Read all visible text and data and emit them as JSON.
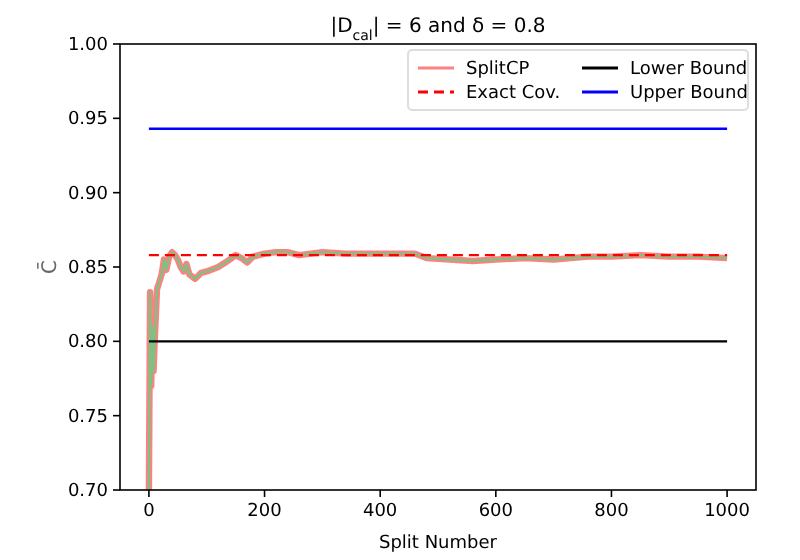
{
  "chart_data": {
    "type": "line",
    "title": "|D$_{cal}$| = 6 and δ = 0.8",
    "xlabel": "Split Number",
    "ylabel": "C̄",
    "xlim": [
      -50,
      1050
    ],
    "ylim": [
      0.7,
      1.0
    ],
    "xticks": [
      0,
      200,
      400,
      600,
      800,
      1000
    ],
    "yticks": [
      {
        "value": 0.7,
        "label": "0.70"
      },
      {
        "value": 0.75,
        "label": "0.75"
      },
      {
        "value": 0.8,
        "label": "0.80"
      },
      {
        "value": 0.85,
        "label": "0.85"
      },
      {
        "value": 0.9,
        "label": "0.90"
      },
      {
        "value": 0.95,
        "label": "0.95"
      },
      {
        "value": 1.0,
        "label": "1.00"
      }
    ],
    "grid": false,
    "legend": "top right",
    "line_style": "solid",
    "series": [
      {
        "name": "SplitCP",
        "color": "#ff8080",
        "x": [
          0,
          2,
          4,
          6,
          8,
          10,
          14,
          18,
          22,
          26,
          30,
          35,
          40,
          45,
          50,
          55,
          60,
          65,
          70,
          80,
          90,
          100,
          120,
          140,
          150,
          160,
          170,
          180,
          200,
          220,
          240,
          260,
          300,
          340,
          400,
          460,
          480,
          520,
          560,
          600,
          650,
          700,
          760,
          800,
          850,
          900,
          950,
          1000
        ],
        "values": [
          0.7,
          0.833,
          0.77,
          0.81,
          0.78,
          0.8,
          0.835,
          0.84,
          0.845,
          0.855,
          0.848,
          0.857,
          0.86,
          0.858,
          0.855,
          0.85,
          0.847,
          0.852,
          0.845,
          0.842,
          0.846,
          0.847,
          0.85,
          0.855,
          0.858,
          0.856,
          0.853,
          0.857,
          0.859,
          0.86,
          0.86,
          0.858,
          0.86,
          0.859,
          0.859,
          0.859,
          0.856,
          0.855,
          0.854,
          0.855,
          0.856,
          0.855,
          0.857,
          0.857,
          0.858,
          0.857,
          0.857,
          0.856
        ]
      },
      {
        "color": "#80c080",
        "x": [
          0,
          2,
          4,
          6,
          8,
          10,
          14,
          18,
          22,
          26,
          30,
          35,
          40,
          45,
          50,
          55,
          60,
          65,
          70,
          80,
          90,
          100,
          120,
          140,
          150,
          160,
          170,
          180,
          200,
          220,
          240,
          260,
          300,
          340,
          400,
          460,
          480,
          520,
          560,
          600,
          650,
          700,
          760,
          800,
          850,
          900,
          950,
          1000
        ],
        "values": [
          0.7,
          0.833,
          0.77,
          0.81,
          0.78,
          0.8,
          0.835,
          0.84,
          0.845,
          0.855,
          0.848,
          0.857,
          0.86,
          0.858,
          0.855,
          0.85,
          0.847,
          0.852,
          0.845,
          0.842,
          0.846,
          0.847,
          0.85,
          0.855,
          0.858,
          0.856,
          0.853,
          0.857,
          0.859,
          0.86,
          0.86,
          0.858,
          0.86,
          0.859,
          0.859,
          0.859,
          0.856,
          0.855,
          0.854,
          0.855,
          0.856,
          0.855,
          0.857,
          0.857,
          0.858,
          0.857,
          0.857,
          0.856
        ]
      },
      {
        "name": "Exact Cov.",
        "color": "#ff0000",
        "line_style": "dashed",
        "x": [
          0,
          1000
        ],
        "values": [
          0.858,
          0.858
        ]
      },
      {
        "name": "Lower Bound",
        "color": "#000000",
        "x": [
          0,
          1000
        ],
        "values": [
          0.8,
          0.8
        ]
      },
      {
        "name": "Upper Bound",
        "color": "#0000ff",
        "x": [
          0,
          1000
        ],
        "values": [
          0.943,
          0.943
        ]
      }
    ]
  }
}
